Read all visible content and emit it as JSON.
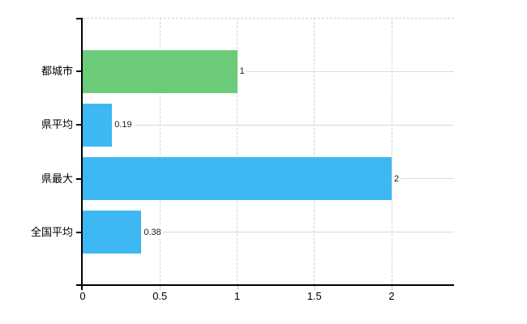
{
  "chart_data": {
    "type": "bar",
    "orientation": "horizontal",
    "title": "",
    "categories": [
      "都城市",
      "県平均",
      "県最大",
      "全国平均"
    ],
    "values": [
      1,
      0.19,
      2,
      0.38
    ],
    "value_labels": [
      "1",
      "0.19",
      "2",
      "0.38"
    ],
    "series": [
      {
        "name": "",
        "values": [
          1,
          0.19,
          2,
          0.38
        ]
      }
    ],
    "bar_colors": [
      "#6bcb79",
      "#3eb8f2",
      "#3eb8f2",
      "#3eb8f2"
    ],
    "x_tick_labels": [
      "0",
      "0.5",
      "1",
      "1.5",
      "2"
    ],
    "x_tick_values": [
      0,
      0.5,
      1,
      1.5,
      2
    ],
    "xlim": [
      0,
      2.4
    ],
    "xlabel": "",
    "ylabel": "",
    "legend_position": "none",
    "grid_horizontal": "solid, at category centers",
    "grid_vertical": "dashed, at x ticks"
  },
  "colors": {
    "background": "#ffffff",
    "bar_green": "#6bcb79",
    "bar_blue": "#3eb8f2",
    "axis": "#000000",
    "gridline_horizontal": "#d5dcd5",
    "gridline_vertical": "#d2d2da",
    "category_text": "#000000",
    "value_text": "#1c1c1c"
  }
}
